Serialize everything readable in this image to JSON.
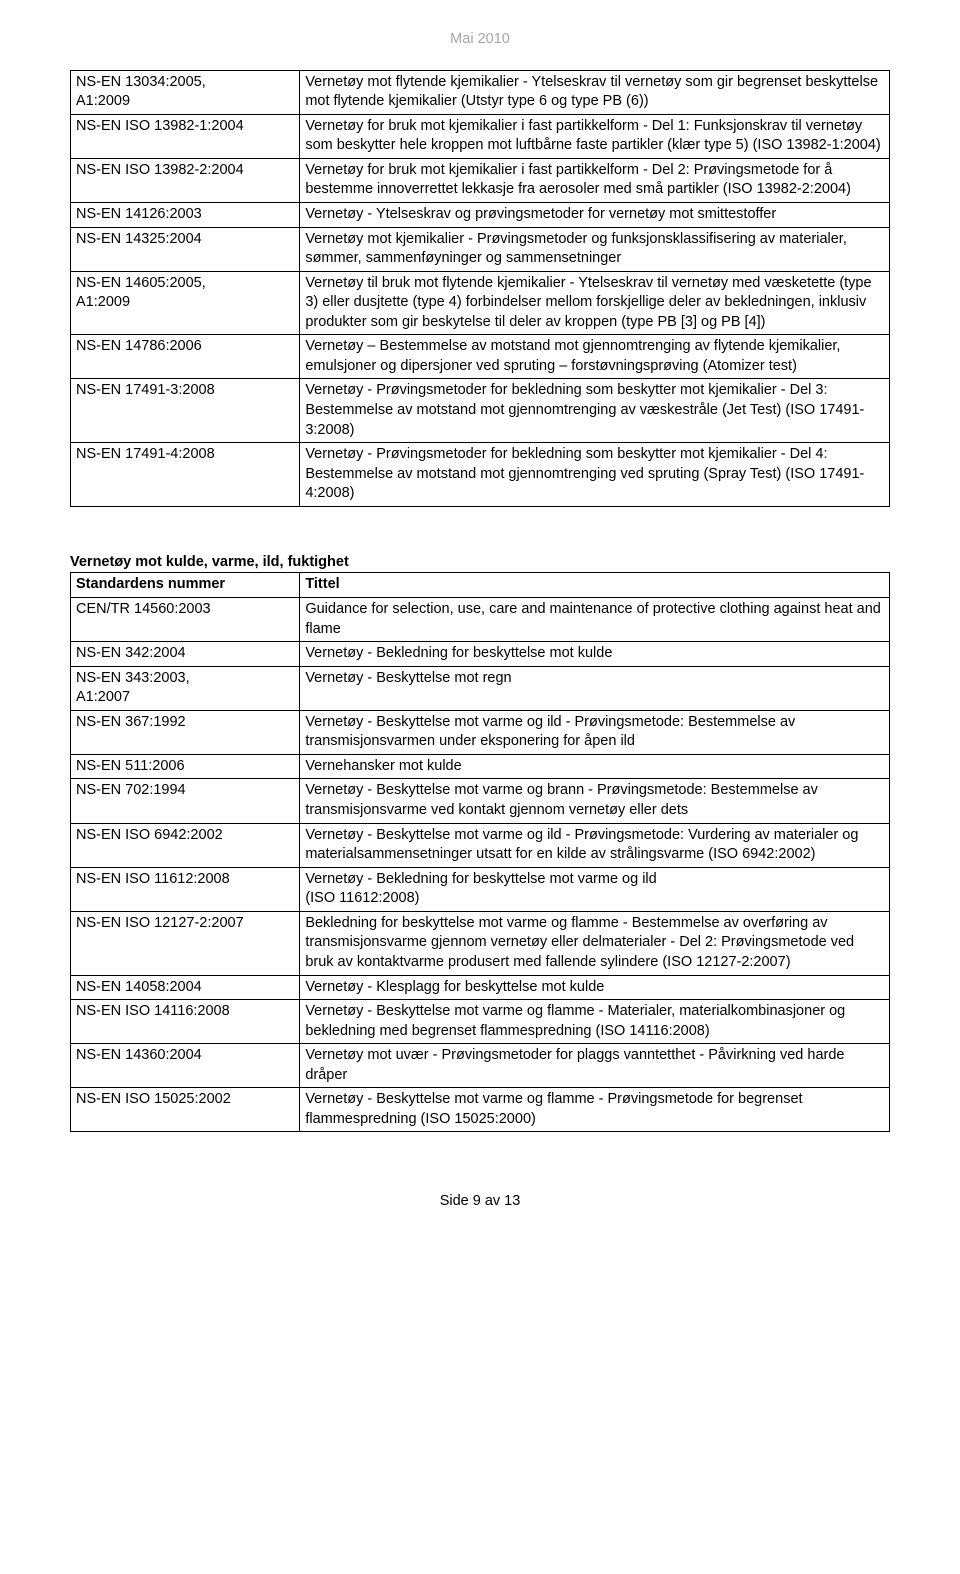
{
  "header": "Mai 2010",
  "table1": {
    "rows": [
      {
        "c0": "NS-EN 13034:2005,\nA1:2009",
        "c1": "Vernetøy mot flytende kjemikalier - Ytelseskrav til vernetøy som gir begrenset beskyttelse mot flytende kjemikalier (Utstyr type 6 og type PB (6))"
      },
      {
        "c0": "NS-EN ISO 13982-1:2004",
        "c1": "Vernetøy for bruk mot kjemikalier i fast partikkelform - Del 1: Funksjonskrav til vernetøy som beskytter hele kroppen mot luftbårne faste partikler (klær type 5) (ISO 13982-1:2004)"
      },
      {
        "c0": "NS-EN ISO 13982-2:2004",
        "c1": "Vernetøy for bruk mot kjemikalier i fast partikkelform - Del 2: Prøvingsmetode for å bestemme innoverrettet lekkasje fra aerosoler med små partikler (ISO 13982-2:2004)"
      },
      {
        "c0": "NS-EN 14126:2003",
        "c1": "Vernetøy - Ytelseskrav og prøvingsmetoder for vernetøy mot smittestoffer"
      },
      {
        "c0": "NS-EN 14325:2004",
        "c1": "Vernetøy mot kjemikalier - Prøvingsmetoder og funksjonsklassifisering av materialer, sømmer, sammenføyninger og sammensetninger"
      },
      {
        "c0": "NS-EN 14605:2005,\nA1:2009",
        "c1": "Vernetøy til bruk mot flytende kjemikalier - Ytelseskrav til vernetøy med væsketette (type 3) eller dusjtette (type 4) forbindelser mellom forskjellige deler av bekledningen, inklusiv produkter som gir beskytelse til deler av kroppen (type PB [3] og PB [4])"
      },
      {
        "c0": "NS-EN 14786:2006",
        "c1": "Vernetøy – Bestemmelse av motstand mot gjennomtrenging av flytende kjemikalier, emulsjoner og dipersjoner ved spruting – forstøvningsprøving (Atomizer test)"
      },
      {
        "c0": "NS-EN 17491-3:2008",
        "c1": "Vernetøy - Prøvingsmetoder for bekledning som beskytter mot kjemikalier - Del 3: Bestemmelse av motstand mot gjennomtrenging av væskestråle (Jet Test) (ISO 17491-3:2008)"
      },
      {
        "c0": "NS-EN 17491-4:2008",
        "c1": "Vernetøy - Prøvingsmetoder for bekledning som beskytter mot kjemikalier - Del 4: Bestemmelse av motstand mot gjennomtrenging ved spruting (Spray Test) (ISO 17491-4:2008)"
      }
    ]
  },
  "section2_title": "Vernetøy mot kulde, varme, ild, fuktighet",
  "table2": {
    "header": {
      "c0": "Standardens nummer",
      "c1": "Tittel"
    },
    "rows": [
      {
        "c0": "CEN/TR 14560:2003",
        "c1": "Guidance for selection, use, care and maintenance of protective clothing against heat and flame"
      },
      {
        "c0": "NS-EN 342:2004",
        "c1": "Vernetøy - Bekledning for beskyttelse mot kulde"
      },
      {
        "c0": "NS-EN 343:2003,\nA1:2007",
        "c1": "Vernetøy - Beskyttelse mot regn"
      },
      {
        "c0": "NS-EN 367:1992",
        "c1": "Vernetøy - Beskyttelse mot varme og ild - Prøvingsmetode: Bestemmelse av transmisjonsvarmen under eksponering for åpen ild"
      },
      {
        "c0": "NS-EN 511:2006",
        "c1": "Vernehansker mot kulde"
      },
      {
        "c0": "NS-EN 702:1994",
        "c1": "Vernetøy - Beskyttelse mot varme og brann - Prøvingsmetode: Bestemmelse av transmisjonsvarme ved kontakt gjennom vernetøy eller dets"
      },
      {
        "c0": "NS-EN ISO 6942:2002",
        "c1": "Vernetøy - Beskyttelse mot varme og ild - Prøvingsmetode: Vurdering av materialer og materialsammensetninger utsatt for en kilde av strålingsvarme (ISO 6942:2002)"
      },
      {
        "c0": "NS-EN ISO 11612:2008",
        "c1": "Vernetøy - Bekledning for beskyttelse mot varme og ild\n(ISO 11612:2008)"
      },
      {
        "c0": "NS-EN ISO 12127-2:2007",
        "c1": "Bekledning for beskyttelse mot varme og flamme - Bestemmelse av overføring av transmisjonsvarme gjennom vernetøy eller delmaterialer - Del 2: Prøvingsmetode ved bruk av kontaktvarme produsert med fallende sylindere (ISO 12127-2:2007)"
      },
      {
        "c0": "NS-EN 14058:2004",
        "c1": "Vernetøy - Klesplagg for beskyttelse mot kulde"
      },
      {
        "c0": "NS-EN ISO 14116:2008",
        "c1": "Vernetøy - Beskyttelse mot varme og flamme - Materialer, materialkombinasjoner og bekledning med begrenset flammespredning (ISO 14116:2008)"
      },
      {
        "c0": "NS-EN 14360:2004",
        "c1": "Vernetøy mot uvær - Prøvingsmetoder for plaggs vanntetthet - Påvirkning ved harde dråper"
      },
      {
        "c0": "NS-EN ISO 15025:2002",
        "c1": "Vernetøy - Beskyttelse mot varme og flamme - Prøvingsmetode for begrenset flammespredning (ISO 15025:2000)"
      }
    ]
  },
  "footer": "Side 9 av 13"
}
